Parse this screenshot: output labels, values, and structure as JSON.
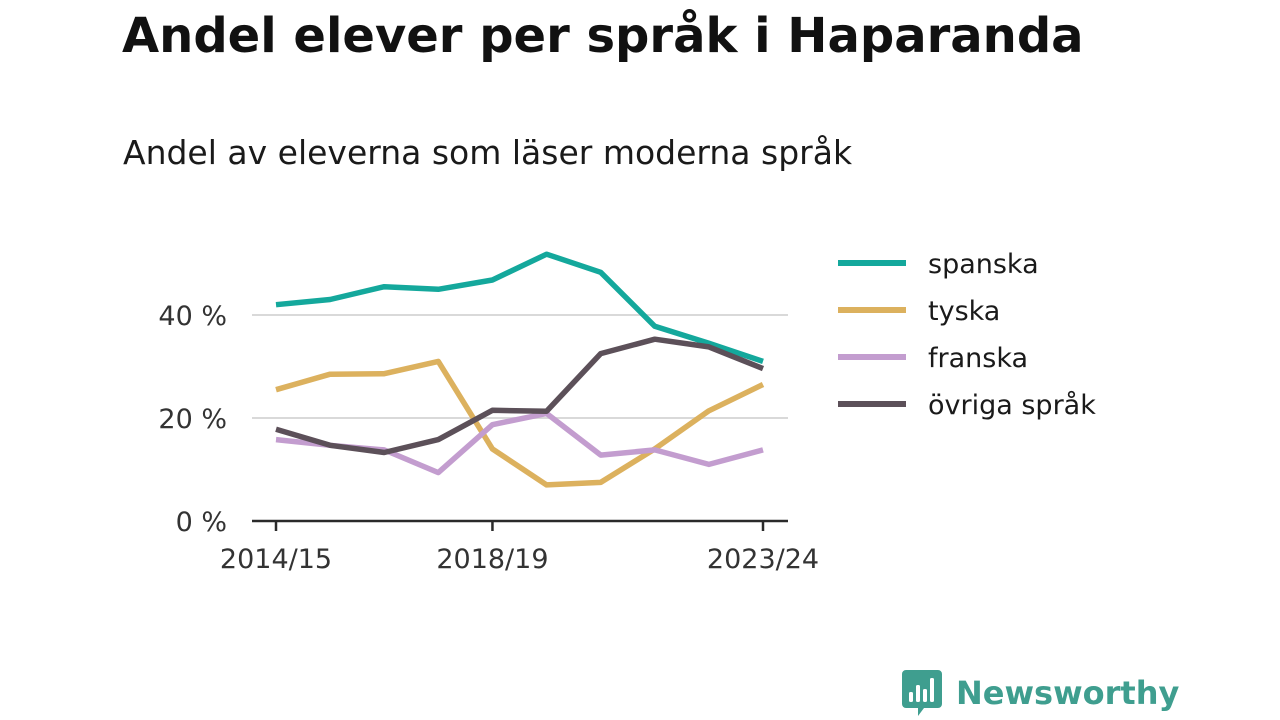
{
  "title": "Andel elever per språk i Haparanda",
  "subtitle": "Andel av eleverna som läser moderna språk",
  "brand": {
    "name": "Newsworthy",
    "icon": "newsworthy-logo-icon",
    "color": "#3f9e8f"
  },
  "chart_data": {
    "type": "line",
    "title": "Andel elever per språk i Haparanda",
    "subtitle": "Andel av eleverna som läser moderna språk",
    "x": [
      "2014/15",
      "2015/16",
      "2016/17",
      "2017/18",
      "2018/19",
      "2019/20",
      "2020/21",
      "2021/22",
      "2022/23",
      "2023/24"
    ],
    "x_tick_labels": [
      "2014/15",
      "2018/19",
      "2023/24"
    ],
    "y_ticks": [
      0,
      20,
      40
    ],
    "y_tick_labels": [
      "0 %",
      "20 %",
      "40 %"
    ],
    "ylim": [
      0,
      52
    ],
    "grid": true,
    "legend_position": "right",
    "series": [
      {
        "name": "spanska",
        "color": "#14a89c",
        "values": [
          42,
          43,
          45.5,
          45,
          46.8,
          51.8,
          48.3,
          37.8,
          34.5,
          31
        ]
      },
      {
        "name": "tyska",
        "color": "#dcb15e",
        "values": [
          25.5,
          28.5,
          28.6,
          31,
          14,
          7,
          7.5,
          14,
          21.4,
          26.5
        ]
      },
      {
        "name": "franska",
        "color": "#c39dcf",
        "values": [
          15.8,
          14.7,
          13.8,
          9.4,
          18.7,
          20.9,
          12.8,
          13.8,
          11,
          13.8
        ]
      },
      {
        "name": "övriga språk",
        "color": "#5c5059",
        "values": [
          17.8,
          14.7,
          13.3,
          15.8,
          21.5,
          21.3,
          32.5,
          35.3,
          33.8,
          29.6
        ]
      }
    ]
  }
}
